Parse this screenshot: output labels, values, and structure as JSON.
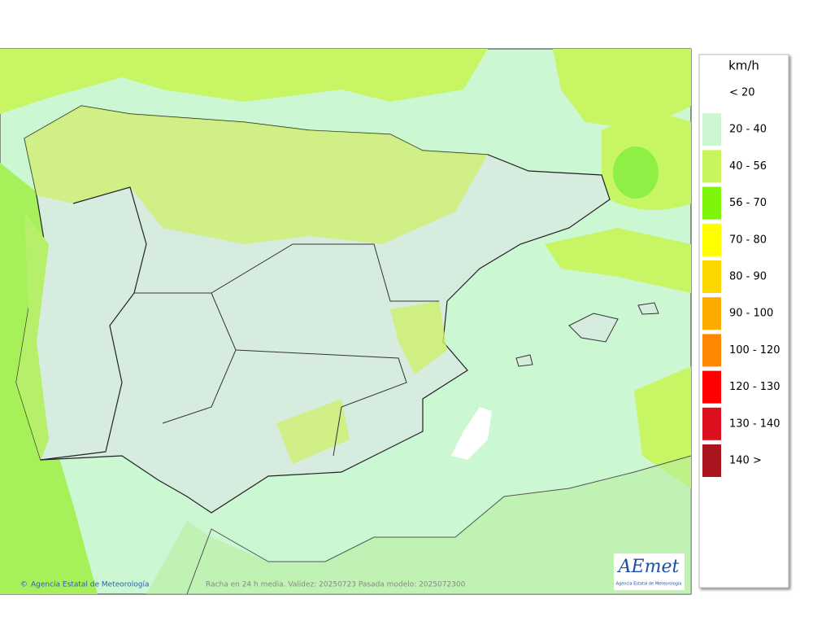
{
  "map": {
    "credit": "Agencia Estatal de Meteorología",
    "caption": "Racha en 24 h media. Validez: 20250723 Pasada modelo: 2025072300",
    "logo": {
      "text": "AEmet",
      "subtitle": "Agencia Estatal de Meteorología"
    }
  },
  "legend": {
    "unit": "km/h",
    "items": [
      {
        "label": "< 20",
        "color": "#ffffff"
      },
      {
        "label": "20 - 40",
        "color": "#ccf5d2"
      },
      {
        "label": "40 - 56",
        "color": "#c8f55e"
      },
      {
        "label": "56 - 70",
        "color": "#7cf50a"
      },
      {
        "label": "70 - 80",
        "color": "#ffff00"
      },
      {
        "label": "80 - 90",
        "color": "#ffd700"
      },
      {
        "label": "90 - 100",
        "color": "#ffaa00"
      },
      {
        "label": "100 - 120",
        "color": "#ff8800"
      },
      {
        "label": "120 - 130",
        "color": "#ff0000"
      },
      {
        "label": "130 - 140",
        "color": "#dd1020"
      },
      {
        "label": "140 >",
        "color": "#aa1520"
      }
    ]
  }
}
